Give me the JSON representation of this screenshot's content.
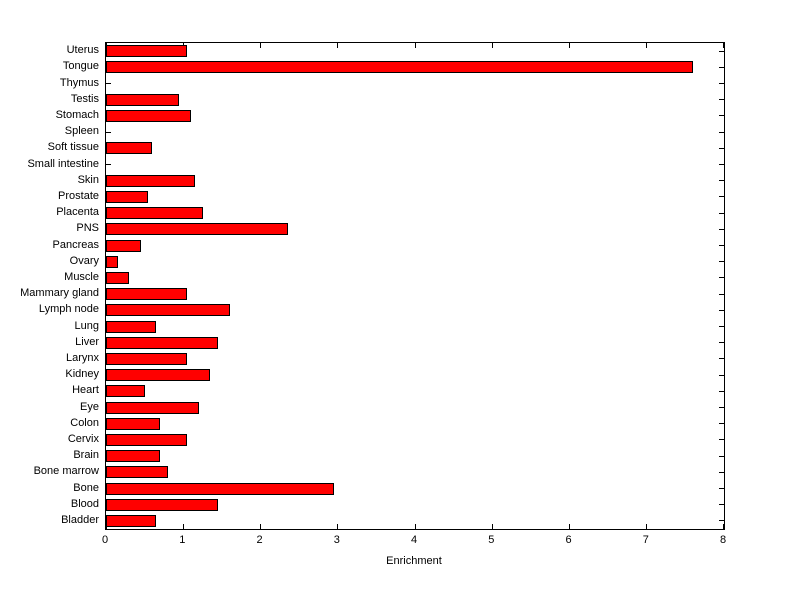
{
  "figure": {
    "background": "#ffffff"
  },
  "chart_data": {
    "type": "bar",
    "orientation": "horizontal",
    "title": "",
    "xlabel": "Enrichment",
    "ylabel": "",
    "xlim": [
      0,
      8
    ],
    "xticks": [
      0,
      1,
      2,
      3,
      4,
      5,
      6,
      7,
      8
    ],
    "grid": false,
    "legend_position": "none",
    "bar_color": "#ff0000",
    "bar_edge_color": "#000000",
    "categories": [
      "Uterus",
      "Tongue",
      "Thymus",
      "Testis",
      "Stomach",
      "Spleen",
      "Soft tissue",
      "Small intestine",
      "Skin",
      "Prostate",
      "Placenta",
      "PNS",
      "Pancreas",
      "Ovary",
      "Muscle",
      "Mammary gland",
      "Lymph node",
      "Lung",
      "Liver",
      "Larynx",
      "Kidney",
      "Heart",
      "Eye",
      "Colon",
      "Cervix",
      "Brain",
      "Bone marrow",
      "Bone",
      "Blood",
      "Bladder"
    ],
    "values": [
      1.05,
      7.6,
      0,
      0.95,
      1.1,
      0,
      0.6,
      0,
      1.15,
      0.55,
      1.25,
      2.35,
      0.45,
      0.15,
      0.3,
      1.05,
      1.6,
      0.65,
      1.45,
      1.05,
      1.35,
      0.5,
      1.2,
      0.7,
      1.05,
      0.7,
      0.8,
      2.95,
      1.45,
      0.65
    ]
  }
}
